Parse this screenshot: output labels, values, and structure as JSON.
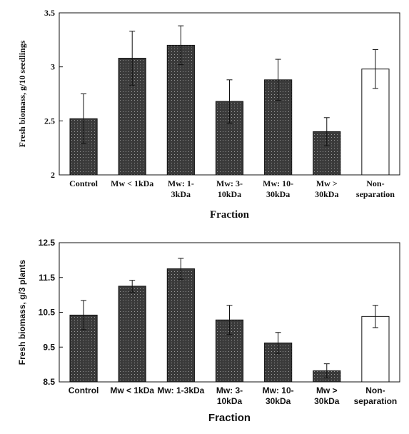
{
  "chart_data": [
    {
      "type": "bar",
      "ylabel": "Fresh biomass, g/10 seedlings",
      "xlabel": "Fraction",
      "categories": [
        [
          "Control"
        ],
        [
          "Mw < 1kDa"
        ],
        [
          "Mw: 1-",
          "3kDa"
        ],
        [
          "Mw: 3-",
          "10kDa"
        ],
        [
          "Mw: 10-",
          "30kDa"
        ],
        [
          "Mw >",
          "30kDa"
        ],
        [
          "Non-",
          "separation"
        ]
      ],
      "values": [
        2.52,
        3.08,
        3.2,
        2.68,
        2.88,
        2.4,
        2.98
      ],
      "errors": [
        0.23,
        0.25,
        0.18,
        0.2,
        0.19,
        0.13,
        0.18
      ],
      "colors": [
        "#3a3a3a",
        "#3a3a3a",
        "#3a3a3a",
        "#3a3a3a",
        "#3a3a3a",
        "#3a3a3a",
        "#ffffff"
      ],
      "ylim": [
        2,
        3.5
      ],
      "yticks": [
        2,
        2.5,
        3,
        3.5
      ]
    },
    {
      "type": "bar",
      "ylabel": "Fresh biomass, g/3 plants",
      "xlabel": "Fraction",
      "categories": [
        [
          "Control"
        ],
        [
          "Mw < 1kDa"
        ],
        [
          "Mw: 1-3kDa"
        ],
        [
          "Mw: 3-",
          "10kDa"
        ],
        [
          "Mw: 10-",
          "30kDa"
        ],
        [
          "Mw >",
          "30kDa"
        ],
        [
          "Non-",
          "separation"
        ]
      ],
      "values": [
        10.42,
        11.25,
        11.75,
        10.28,
        9.62,
        8.82,
        10.38
      ],
      "errors": [
        0.42,
        0.17,
        0.3,
        0.42,
        0.3,
        0.2,
        0.32
      ],
      "colors": [
        "#3a3a3a",
        "#3a3a3a",
        "#3a3a3a",
        "#3a3a3a",
        "#3a3a3a",
        "#3a3a3a",
        "#ffffff"
      ],
      "ylim": [
        8.5,
        12.5
      ],
      "yticks": [
        8.5,
        9.5,
        10.5,
        11.5,
        12.5
      ]
    }
  ]
}
